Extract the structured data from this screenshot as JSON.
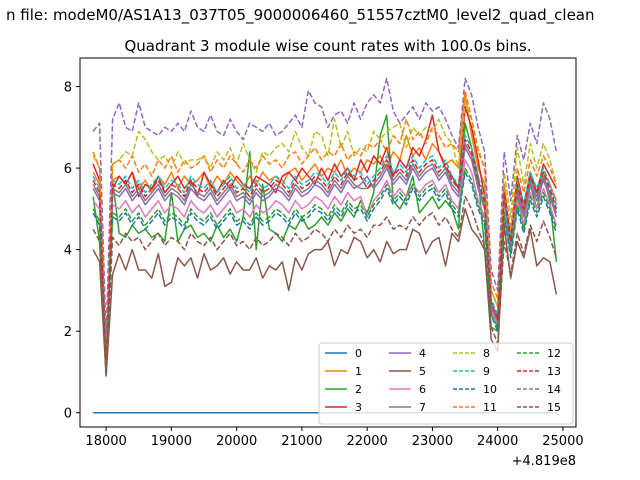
{
  "figure": {
    "suptitle": "n file: modeM0/AS1A13_037T05_9000006460_51557cztM0_level2_quad_clean",
    "title": "Quadrant 3 module wise count rates with 100.0s bins.",
    "x_offset_label": "+4.819e8"
  },
  "chart_data": {
    "type": "line",
    "title": "Quadrant 3 module wise count rates with 100.0s bins.",
    "xlabel": "",
    "ylabel": "",
    "xlim": [
      17600,
      25200
    ],
    "ylim": [
      -0.35,
      8.7
    ],
    "x_offset": "+4.819e8",
    "x_ticks": [
      18000,
      19000,
      20000,
      21000,
      22000,
      23000,
      24000,
      25000
    ],
    "y_ticks": [
      0,
      2,
      4,
      6,
      8
    ],
    "grid": false,
    "legend_position": "lower right",
    "legend_columns": 4,
    "x_start": 17800,
    "x_step": 100,
    "series": [
      {
        "name": "0",
        "color": "#1f77b4",
        "dash": "solid",
        "values": [
          0,
          0,
          0,
          0,
          0,
          0,
          0,
          0,
          0,
          0,
          0,
          0,
          0,
          0,
          0,
          0,
          0,
          0,
          0,
          0,
          0,
          0,
          0,
          0,
          0,
          0,
          0,
          0,
          0,
          0,
          0,
          0,
          0,
          0,
          0,
          0,
          0,
          0,
          0,
          0,
          0,
          0,
          0,
          0,
          0,
          0,
          0,
          0,
          0,
          0,
          0,
          0,
          0,
          0,
          0,
          0,
          0,
          0,
          0,
          0,
          0,
          0,
          0,
          0,
          0,
          0,
          0,
          0,
          0,
          0,
          0,
          0
        ]
      },
      {
        "name": "1",
        "color": "#ff7f0e",
        "dash": "solid",
        "values": [
          5.9,
          5.6,
          1.0,
          5.7,
          5.8,
          5.6,
          5.9,
          5.5,
          5.7,
          5.4,
          5.8,
          5.6,
          5.9,
          5.5,
          5.8,
          5.6,
          5.7,
          5.9,
          5.5,
          5.8,
          5.6,
          5.9,
          5.7,
          5.5,
          5.8,
          5.6,
          5.9,
          5.7,
          5.8,
          5.6,
          5.9,
          6.0,
          5.7,
          5.9,
          6.1,
          5.8,
          6.0,
          5.9,
          6.2,
          5.8,
          6.0,
          5.9,
          6.2,
          6.1,
          6.3,
          6.0,
          6.4,
          6.2,
          6.8,
          6.3,
          6.5,
          6.2,
          6.6,
          6.4,
          6.1,
          6.2,
          6.0,
          7.8,
          6.8,
          6.0,
          5.6,
          3.0,
          2.6,
          5.2,
          4.2,
          5.6,
          5.0,
          5.8,
          5.4,
          5.9,
          5.6,
          5.2
        ]
      },
      {
        "name": "2",
        "color": "#2ca02c",
        "dash": "solid",
        "values": [
          5.3,
          4.2,
          1.0,
          5.7,
          4.4,
          4.3,
          4.6,
          4.4,
          4.5,
          4.3,
          4.4,
          4.2,
          5.4,
          4.2,
          4.5,
          4.6,
          4.3,
          4.4,
          4.2,
          4.6,
          4.3,
          4.5,
          4.2,
          4.8,
          6.4,
          4.0,
          5.6,
          4.5,
          4.4,
          4.2,
          4.6,
          4.5,
          4.8,
          4.5,
          4.6,
          4.8,
          4.6,
          4.9,
          4.7,
          5.0,
          4.8,
          5.2,
          4.9,
          5.4,
          6.8,
          7.3,
          5.2,
          5.0,
          5.3,
          5.8,
          4.9,
          5.1,
          5.3,
          5.0,
          5.2,
          5.0,
          4.5,
          7.1,
          6.5,
          5.8,
          4.0,
          2.1,
          2.0,
          5.6,
          4.0,
          5.3,
          4.6,
          5.6,
          5.0,
          5.8,
          5.2,
          3.7
        ]
      },
      {
        "name": "3",
        "color": "#d62728",
        "dash": "solid",
        "values": [
          6.1,
          5.7,
          1.2,
          5.5,
          5.8,
          5.6,
          5.9,
          5.3,
          5.6,
          5.5,
          5.8,
          5.4,
          5.6,
          5.8,
          5.5,
          5.7,
          5.3,
          5.9,
          5.6,
          5.4,
          5.7,
          5.5,
          5.8,
          5.6,
          5.5,
          5.8,
          5.7,
          5.6,
          5.4,
          5.8,
          5.9,
          5.7,
          6.0,
          5.8,
          5.6,
          6.0,
          5.7,
          6.1,
          5.8,
          6.0,
          5.7,
          6.2,
          5.9,
          6.3,
          6.1,
          6.5,
          5.8,
          6.2,
          6.0,
          6.5,
          6.3,
          6.7,
          7.3,
          6.4,
          6.0,
          5.8,
          5.5,
          7.5,
          7.0,
          6.2,
          5.3,
          2.5,
          2.4,
          5.4,
          4.3,
          5.8,
          5.1,
          5.9,
          5.4,
          6.1,
          5.8,
          5.5
        ]
      },
      {
        "name": "4",
        "color": "#9467bd",
        "dash": "solid",
        "values": [
          5.5,
          5.2,
          1.1,
          5.4,
          5.3,
          5.5,
          5.2,
          5.4,
          5.1,
          5.3,
          5.5,
          5.2,
          5.4,
          5.3,
          5.1,
          5.5,
          5.3,
          5.2,
          5.4,
          5.1,
          5.3,
          5.5,
          5.2,
          5.3,
          5.1,
          5.4,
          5.2,
          5.3,
          5.5,
          5.4,
          5.2,
          5.5,
          5.3,
          5.4,
          5.6,
          5.5,
          5.3,
          5.6,
          5.4,
          5.7,
          5.5,
          5.6,
          5.8,
          5.5,
          5.7,
          6.0,
          5.6,
          5.8,
          5.6,
          6.0,
          5.7,
          5.9,
          6.0,
          5.7,
          5.9,
          5.5,
          5.3,
          6.5,
          6.2,
          5.5,
          5.0,
          2.6,
          2.2,
          5.2,
          4.0,
          5.4,
          4.8,
          5.6,
          5.2,
          5.7,
          5.3,
          4.8
        ]
      },
      {
        "name": "5",
        "color": "#8c564b",
        "dash": "solid",
        "values": [
          4.0,
          3.7,
          0.9,
          3.4,
          3.9,
          3.5,
          4.0,
          3.5,
          3.5,
          3.3,
          3.9,
          3.1,
          3.2,
          3.8,
          3.6,
          3.8,
          3.3,
          3.9,
          3.5,
          3.6,
          3.8,
          3.4,
          3.7,
          3.5,
          3.5,
          3.8,
          3.3,
          3.6,
          3.5,
          3.7,
          3.0,
          3.8,
          3.5,
          3.9,
          4.0,
          4.0,
          4.2,
          3.6,
          4.0,
          3.9,
          4.3,
          4.2,
          3.8,
          4.0,
          3.7,
          4.2,
          3.9,
          4.0,
          4.0,
          4.5,
          4.4,
          3.9,
          4.2,
          4.3,
          3.6,
          4.4,
          4.2,
          5.0,
          4.5,
          4.3,
          4.0,
          1.8,
          1.5,
          4.6,
          3.3,
          4.2,
          3.8,
          4.5,
          3.6,
          3.8,
          3.7,
          2.9
        ]
      },
      {
        "name": "6",
        "color": "#e377c2",
        "dash": "solid",
        "values": [
          5.2,
          5.0,
          1.1,
          5.1,
          5.0,
          5.2,
          4.9,
          5.1,
          4.8,
          5.0,
          5.2,
          4.9,
          5.1,
          5.0,
          4.8,
          5.2,
          5.0,
          4.9,
          5.1,
          4.8,
          5.0,
          5.2,
          4.9,
          5.0,
          4.8,
          5.1,
          4.9,
          5.0,
          5.2,
          5.1,
          4.9,
          5.2,
          5.0,
          5.1,
          5.3,
          5.2,
          5.0,
          5.3,
          5.1,
          5.4,
          5.2,
          5.3,
          4.8,
          5.2,
          5.4,
          5.7,
          5.3,
          5.5,
          5.3,
          5.6,
          5.4,
          5.6,
          5.7,
          5.4,
          5.6,
          5.2,
          5.0,
          6.2,
          5.9,
          5.2,
          4.8,
          2.5,
          2.1,
          5.0,
          3.9,
          5.2,
          4.6,
          5.4,
          5.0,
          5.5,
          5.1,
          4.6
        ]
      },
      {
        "name": "7",
        "color": "#7f7f7f",
        "dash": "solid",
        "values": [
          5.6,
          5.3,
          1.1,
          5.5,
          5.4,
          5.6,
          5.3,
          5.5,
          5.2,
          5.4,
          5.6,
          5.3,
          5.5,
          5.4,
          5.2,
          5.6,
          5.4,
          5.3,
          5.5,
          5.2,
          5.4,
          5.6,
          5.3,
          5.4,
          5.2,
          5.5,
          5.3,
          5.4,
          5.6,
          5.5,
          5.3,
          5.6,
          5.4,
          5.5,
          5.7,
          5.6,
          5.4,
          5.7,
          5.5,
          5.8,
          5.6,
          5.5,
          5.5,
          5.6,
          5.8,
          6.1,
          5.7,
          5.9,
          5.7,
          6.1,
          5.8,
          6.0,
          6.1,
          5.8,
          6.0,
          5.6,
          5.4,
          6.6,
          6.3,
          5.6,
          5.1,
          2.7,
          2.3,
          5.3,
          4.1,
          5.5,
          4.9,
          5.7,
          5.3,
          5.8,
          5.4,
          4.9
        ]
      },
      {
        "name": "8",
        "color": "#bcbd22",
        "dash": "dashed",
        "values": [
          6.3,
          6.0,
          1.3,
          6.1,
          6.2,
          6.4,
          6.3,
          6.9,
          6.7,
          6.4,
          6.2,
          6.3,
          6.0,
          6.4,
          6.1,
          6.2,
          6.2,
          6.3,
          6.0,
          6.4,
          6.2,
          6.5,
          6.1,
          6.6,
          6.2,
          5.9,
          6.4,
          6.3,
          6.5,
          6.6,
          6.4,
          6.9,
          6.5,
          6.3,
          6.9,
          6.8,
          6.3,
          7.2,
          6.5,
          6.9,
          6.3,
          6.5,
          6.4,
          6.9,
          6.7,
          6.9,
          7.0,
          7.1,
          6.5,
          7.0,
          6.8,
          7.0,
          6.9,
          7.2,
          6.8,
          6.6,
          6.0,
          7.6,
          7.2,
          6.5,
          6.0,
          3.0,
          2.6,
          5.9,
          4.8,
          6.5,
          5.6,
          6.6,
          6.0,
          6.6,
          6.2,
          5.6
        ]
      },
      {
        "name": "9",
        "color": "#17becf",
        "dash": "dashed",
        "values": [
          5.8,
          5.5,
          1.2,
          5.7,
          5.6,
          5.8,
          5.5,
          5.7,
          5.4,
          5.6,
          5.8,
          5.5,
          5.7,
          5.6,
          5.4,
          5.8,
          5.6,
          5.5,
          5.7,
          5.4,
          5.6,
          5.8,
          5.5,
          5.6,
          5.4,
          5.7,
          5.5,
          5.6,
          5.8,
          5.7,
          5.5,
          5.8,
          5.6,
          5.7,
          5.9,
          5.8,
          5.6,
          5.9,
          5.7,
          6.0,
          5.8,
          5.9,
          5.6,
          5.8,
          6.0,
          6.3,
          5.9,
          6.1,
          5.9,
          6.3,
          6.0,
          6.2,
          6.3,
          6.0,
          6.2,
          5.8,
          5.6,
          6.8,
          6.5,
          5.8,
          5.3,
          2.8,
          2.4,
          5.5,
          4.3,
          5.7,
          5.1,
          5.9,
          5.5,
          6.0,
          5.6,
          5.1
        ]
      },
      {
        "name": "10",
        "color": "#1f77b4",
        "dash": "dashed",
        "values": [
          4.9,
          4.6,
          1.0,
          4.8,
          4.7,
          4.9,
          4.6,
          4.8,
          4.5,
          4.7,
          4.9,
          4.6,
          4.8,
          4.7,
          4.5,
          4.9,
          4.7,
          4.6,
          4.8,
          4.5,
          4.7,
          4.9,
          4.6,
          4.7,
          4.5,
          4.8,
          4.6,
          4.7,
          4.9,
          4.8,
          4.6,
          4.9,
          4.7,
          4.8,
          5.0,
          4.9,
          4.7,
          5.0,
          4.8,
          5.1,
          4.9,
          5.0,
          4.7,
          5.0,
          5.2,
          5.5,
          5.1,
          5.3,
          5.1,
          5.5,
          5.2,
          5.4,
          5.5,
          5.2,
          5.4,
          5.0,
          4.8,
          5.9,
          5.6,
          5.0,
          4.6,
          2.4,
          2.0,
          4.8,
          3.8,
          5.0,
          4.4,
          5.2,
          4.8,
          5.3,
          4.9,
          4.4
        ]
      },
      {
        "name": "11",
        "color": "#ff7f0e",
        "dash": "dashed",
        "values": [
          6.4,
          6.0,
          1.3,
          6.1,
          6.2,
          6.0,
          6.3,
          5.9,
          6.1,
          5.8,
          6.2,
          6.0,
          6.3,
          5.9,
          6.2,
          6.0,
          6.1,
          6.3,
          5.9,
          6.2,
          6.0,
          6.3,
          6.1,
          5.9,
          6.2,
          6.0,
          6.3,
          6.1,
          6.2,
          6.0,
          6.3,
          6.4,
          6.1,
          6.3,
          6.5,
          6.2,
          6.4,
          6.3,
          6.6,
          6.2,
          6.4,
          6.3,
          6.6,
          6.5,
          6.7,
          6.4,
          6.8,
          6.6,
          7.2,
          6.7,
          6.9,
          6.6,
          7.0,
          6.8,
          6.5,
          6.6,
          6.4,
          7.9,
          7.2,
          6.4,
          6.0,
          3.2,
          2.8,
          5.6,
          4.5,
          6.0,
          5.4,
          6.2,
          5.8,
          6.3,
          6.0,
          5.6
        ]
      },
      {
        "name": "12",
        "color": "#2ca02c",
        "dash": "dashed",
        "values": [
          5.0,
          4.7,
          1.0,
          4.9,
          4.8,
          5.0,
          4.7,
          4.9,
          4.6,
          4.8,
          5.0,
          4.7,
          4.9,
          4.8,
          4.6,
          5.0,
          4.8,
          4.7,
          4.9,
          4.6,
          4.8,
          5.0,
          4.7,
          4.8,
          4.6,
          4.9,
          4.7,
          4.8,
          5.0,
          4.9,
          4.7,
          5.0,
          4.8,
          4.9,
          5.1,
          5.0,
          4.8,
          5.1,
          4.9,
          5.2,
          5.0,
          5.1,
          4.8,
          5.1,
          5.3,
          5.6,
          5.2,
          5.4,
          5.2,
          5.6,
          5.3,
          5.5,
          5.6,
          5.3,
          5.5,
          5.1,
          4.9,
          6.0,
          5.7,
          5.1,
          4.7,
          2.4,
          2.1,
          4.9,
          3.9,
          5.1,
          4.5,
          5.3,
          4.9,
          5.4,
          5.0,
          4.5
        ]
      },
      {
        "name": "13",
        "color": "#d62728",
        "dash": "dashed",
        "values": [
          5.7,
          5.4,
          1.2,
          5.6,
          5.5,
          5.7,
          5.4,
          5.6,
          5.3,
          5.5,
          5.7,
          5.4,
          5.6,
          5.5,
          5.3,
          5.7,
          5.5,
          5.4,
          5.6,
          5.3,
          5.5,
          5.7,
          5.4,
          5.5,
          5.3,
          5.6,
          5.4,
          5.5,
          5.7,
          5.6,
          5.4,
          5.7,
          5.5,
          5.6,
          5.8,
          5.7,
          5.5,
          5.8,
          5.6,
          5.9,
          5.7,
          5.8,
          5.5,
          5.7,
          5.9,
          6.2,
          5.8,
          6.0,
          5.8,
          6.2,
          5.9,
          6.1,
          6.2,
          5.9,
          6.1,
          5.7,
          5.5,
          6.7,
          6.4,
          5.7,
          5.2,
          2.7,
          2.3,
          5.4,
          4.2,
          5.6,
          5.0,
          5.8,
          5.4,
          5.9,
          5.5,
          5.0
        ]
      },
      {
        "name": "14",
        "color": "#9467bd",
        "dash": "dashed",
        "values": [
          6.9,
          7.1,
          1.8,
          7.2,
          7.6,
          7.0,
          6.9,
          7.6,
          7.0,
          6.9,
          6.8,
          7.0,
          6.9,
          7.1,
          6.9,
          7.4,
          7.0,
          6.9,
          7.3,
          6.9,
          6.8,
          7.2,
          6.9,
          6.7,
          7.1,
          7.0,
          6.9,
          7.1,
          6.8,
          6.9,
          7.1,
          7.3,
          7.0,
          7.9,
          7.6,
          7.5,
          7.0,
          7.3,
          7.4,
          7.1,
          7.6,
          7.2,
          7.6,
          7.8,
          7.6,
          8.2,
          7.4,
          7.1,
          7.3,
          7.5,
          7.2,
          7.6,
          7.4,
          7.5,
          7.2,
          6.8,
          6.5,
          8.2,
          7.8,
          7.0,
          6.4,
          3.5,
          3.0,
          6.4,
          5.2,
          6.8,
          6.2,
          7.1,
          6.6,
          7.6,
          7.2,
          6.4
        ]
      },
      {
        "name": "15",
        "color": "#8c564b",
        "dash": "dashed",
        "values": [
          4.5,
          4.2,
          0.9,
          4.3,
          4.1,
          4.4,
          4.2,
          4.3,
          4.0,
          4.2,
          4.4,
          4.1,
          4.3,
          4.2,
          4.0,
          4.4,
          4.2,
          4.1,
          4.3,
          4.0,
          4.2,
          4.4,
          4.1,
          4.2,
          4.0,
          4.3,
          4.1,
          4.2,
          4.4,
          4.3,
          4.1,
          4.4,
          4.2,
          4.3,
          4.5,
          4.4,
          4.2,
          4.5,
          4.3,
          4.6,
          4.4,
          4.5,
          4.3,
          4.6,
          4.6,
          4.8,
          4.5,
          4.6,
          4.5,
          4.8,
          4.6,
          4.8,
          4.9,
          4.6,
          4.8,
          4.5,
          4.3,
          5.3,
          5.0,
          4.5,
          4.1,
          2.1,
          1.7,
          4.2,
          3.4,
          4.4,
          3.9,
          4.6,
          4.2,
          4.7,
          4.3,
          3.8
        ]
      }
    ]
  }
}
